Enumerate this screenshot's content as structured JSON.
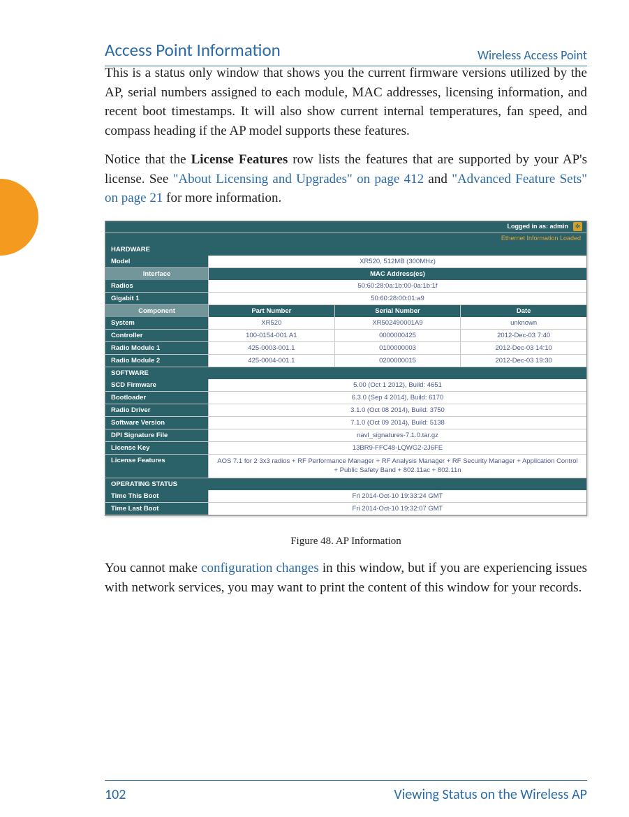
{
  "header": {
    "right": "Wireless Access Point"
  },
  "section_title": "Access Point Information",
  "para1": "This is a status only window that shows you the current firmware versions utilized by the AP, serial numbers assigned to each module, MAC addresses, licensing information, and recent boot timestamps. It will also show current internal temperatures, fan speed, and compass heading if the AP model supports these features.",
  "para2_a": "Notice that the ",
  "para2_bold": "License Features",
  "para2_b": " row lists the features that are supported by your AP's license. See ",
  "para2_link1": "\"About Licensing and Upgrades\" on page 412",
  "para2_c": " and ",
  "para2_link2": "\"Advanced Feature Sets\" on page 21",
  "para2_d": " for more information.",
  "figure_caption": "Figure 48. AP Information",
  "para3_a": "You cannot make ",
  "para3_link": "configuration changes",
  "para3_b": " in this window, but if you are experiencing issues with network services, you may want to print the content of this window for your records.",
  "footer": {
    "page_num": "102",
    "section": "Viewing Status on the Wireless AP"
  },
  "screenshot": {
    "login_text": "Logged in as: admin",
    "star": "✲",
    "loaded_text": "Ethernet Information Loaded",
    "hardware_hdr": "HARDWARE",
    "model_label": "Model",
    "model_value": "XR520, 512MB (300MHz)",
    "interface_hdr": "Interface",
    "mac_hdr": "MAC Address(es)",
    "radios_label": "Radios",
    "radios_value": "50:60:28:0a:1b:00-0a:1b:1f",
    "gig_label": "Gigabit 1",
    "gig_value": "50:60:28:00:01:a9",
    "comp_hdr": "Component",
    "part_hdr": "Part Number",
    "serial_hdr": "Serial Number",
    "date_hdr": "Date",
    "rows4": [
      {
        "c1": "System",
        "c2": "XR520",
        "c3": "XR502490001A9",
        "c4": "unknown"
      },
      {
        "c1": "Controller",
        "c2": "100-0154-001.A1",
        "c3": "0000000425",
        "c4": "2012-Dec-03 7:40"
      },
      {
        "c1": "Radio Module 1",
        "c2": "425-0003-001.1",
        "c3": "0100000003",
        "c4": "2012-Dec-03 14:10"
      },
      {
        "c1": "Radio Module 2",
        "c2": "425-0004-001.1",
        "c3": "0200000015",
        "c4": "2012-Dec-03 19:30"
      }
    ],
    "software_hdr": "SOFTWARE",
    "sw_rows": [
      {
        "label": "SCD Firmware",
        "value": "5.00 (Oct 1 2012), Build: 4651"
      },
      {
        "label": "Bootloader",
        "value": "6.3.0 (Sep 4 2014), Build: 6170"
      },
      {
        "label": "Radio Driver",
        "value": "3.1.0 (Oct 08 2014), Build: 3750"
      },
      {
        "label": "Software Version",
        "value": "7.1.0 (Oct 09 2014), Build: 5138"
      },
      {
        "label": "DPI Signature File",
        "value": "navl_signatures-7.1.0.tar.gz"
      },
      {
        "label": "License Key",
        "value": "13BR9-FFC48-LQWG2-2J6FE"
      }
    ],
    "license_label": "License Features",
    "license_value": "AOS 7.1 for 2 3x3 radios + RF Performance Manager + RF Analysis Manager + RF Security Manager + Application Control + Public Safety Band + 802.11ac + 802.11n",
    "op_hdr": "OPERATING STATUS",
    "op_rows": [
      {
        "label": "Time This Boot",
        "value": "Fri 2014-Oct-10 19:33:24 GMT"
      },
      {
        "label": "Time Last Boot",
        "value": "Fri 2014-Oct-10 19:32:07 GMT"
      }
    ]
  },
  "colors": {
    "link": "#2a6aa6",
    "teal_dark": "#2b6169",
    "teal_light": "#72969a",
    "orange": "#f39a1f",
    "gold": "#e0a63a",
    "value_text": "#4a5a8a"
  }
}
